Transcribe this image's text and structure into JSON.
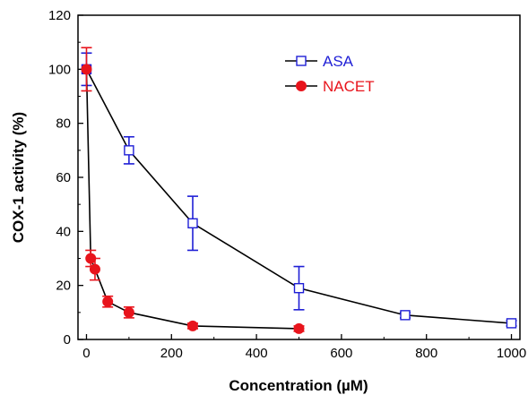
{
  "chart_data": {
    "type": "line",
    "title": "",
    "xlabel": "Concentration (µM)",
    "ylabel": "COX-1 activity (%)",
    "xlim": [
      -20,
      1020
    ],
    "ylim": [
      0,
      120
    ],
    "xticks": [
      0,
      200,
      400,
      600,
      800,
      1000
    ],
    "yticks": [
      0,
      20,
      40,
      60,
      80,
      100,
      120
    ],
    "grid": false,
    "legend_position": "top-right",
    "series": [
      {
        "name": "ASA",
        "color": "#1f1fd6",
        "marker": "open-square",
        "x": [
          0,
          100,
          250,
          500,
          750,
          1000
        ],
        "y": [
          100,
          70,
          43,
          19,
          9,
          6
        ],
        "err": [
          6,
          5,
          10,
          8,
          1,
          1
        ]
      },
      {
        "name": "NACET",
        "color": "#e8141c",
        "marker": "filled-circle",
        "x": [
          0,
          10,
          20,
          50,
          100,
          250,
          500
        ],
        "y": [
          100,
          30,
          26,
          14,
          10,
          5,
          4
        ],
        "err": [
          8,
          3,
          4,
          2,
          2,
          1,
          1
        ]
      }
    ]
  }
}
